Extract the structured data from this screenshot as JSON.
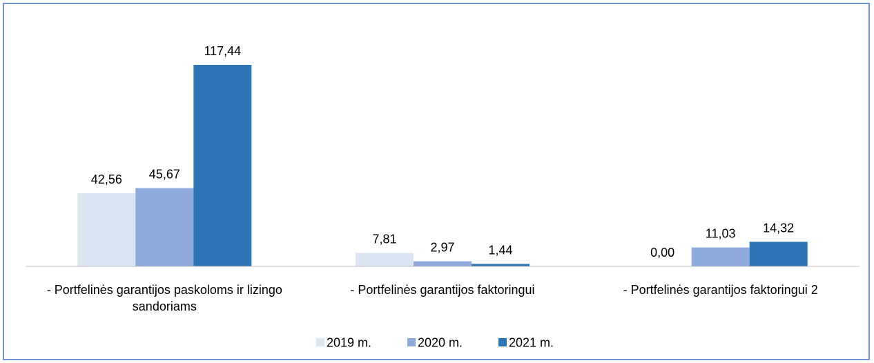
{
  "chart_data": {
    "type": "bar",
    "categories": [
      "- Portfelinės garantijos paskoloms ir lizingo sandoriams",
      "- Portfelinės garantijos faktoringui",
      "- Portfelinės garantijos faktoringui 2"
    ],
    "series": [
      {
        "name": "2019 m.",
        "color": "#dce6f2",
        "values": [
          42.56,
          7.81,
          0.0
        ],
        "value_labels": [
          "42,56",
          "7,81",
          "0,00"
        ]
      },
      {
        "name": "2020 m.",
        "color": "#8faadc",
        "values": [
          45.67,
          2.97,
          11.03
        ],
        "value_labels": [
          "45,67",
          "2,97",
          "11,03"
        ]
      },
      {
        "name": "2021 m.",
        "color": "#2e75b6",
        "values": [
          117.44,
          1.44,
          14.32
        ],
        "value_labels": [
          "117,44",
          "1,44",
          "14,32"
        ]
      }
    ]
  }
}
